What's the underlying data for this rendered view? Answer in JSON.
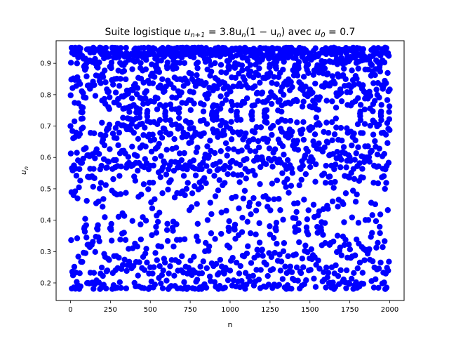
{
  "chart_data": {
    "type": "scatter",
    "title_prefix": "Suite logistique ",
    "title_math": "u",
    "title_math_sub": "n+1",
    "title_math_rest": " = 3.8u",
    "title_math_sub2": "n",
    "title_math_rest2": "(1 − u",
    "title_math_sub3": "n",
    "title_math_rest3": ")",
    "title_mid": " avec ",
    "title_math4": "u",
    "title_math_sub4": "0",
    "title_math_rest4": " = 0.7",
    "xlabel": "n",
    "ylabel_main": "u",
    "ylabel_sub": "n",
    "xlim": [
      -90,
      2090
    ],
    "ylim": [
      0.144,
      0.972
    ],
    "xticks": [
      0,
      250,
      500,
      750,
      1000,
      1250,
      1500,
      1750,
      2000
    ],
    "yticks": [
      0.2,
      0.3,
      0.4,
      0.5,
      0.6,
      0.7,
      0.8,
      0.9
    ],
    "xtick_labels": [
      "0",
      "250",
      "500",
      "750",
      "1000",
      "1250",
      "1500",
      "1750",
      "2000"
    ],
    "ytick_labels": [
      "0.2",
      "0.3",
      "0.4",
      "0.5",
      "0.6",
      "0.7",
      "0.8",
      "0.9"
    ],
    "series": [
      {
        "marker_color": "#0000ff",
        "x_start": 0,
        "x_end": 2000,
        "recurrence": {
          "r": 3.8,
          "u0": 0.7
        }
      }
    ],
    "grid": false,
    "legend": "none"
  }
}
